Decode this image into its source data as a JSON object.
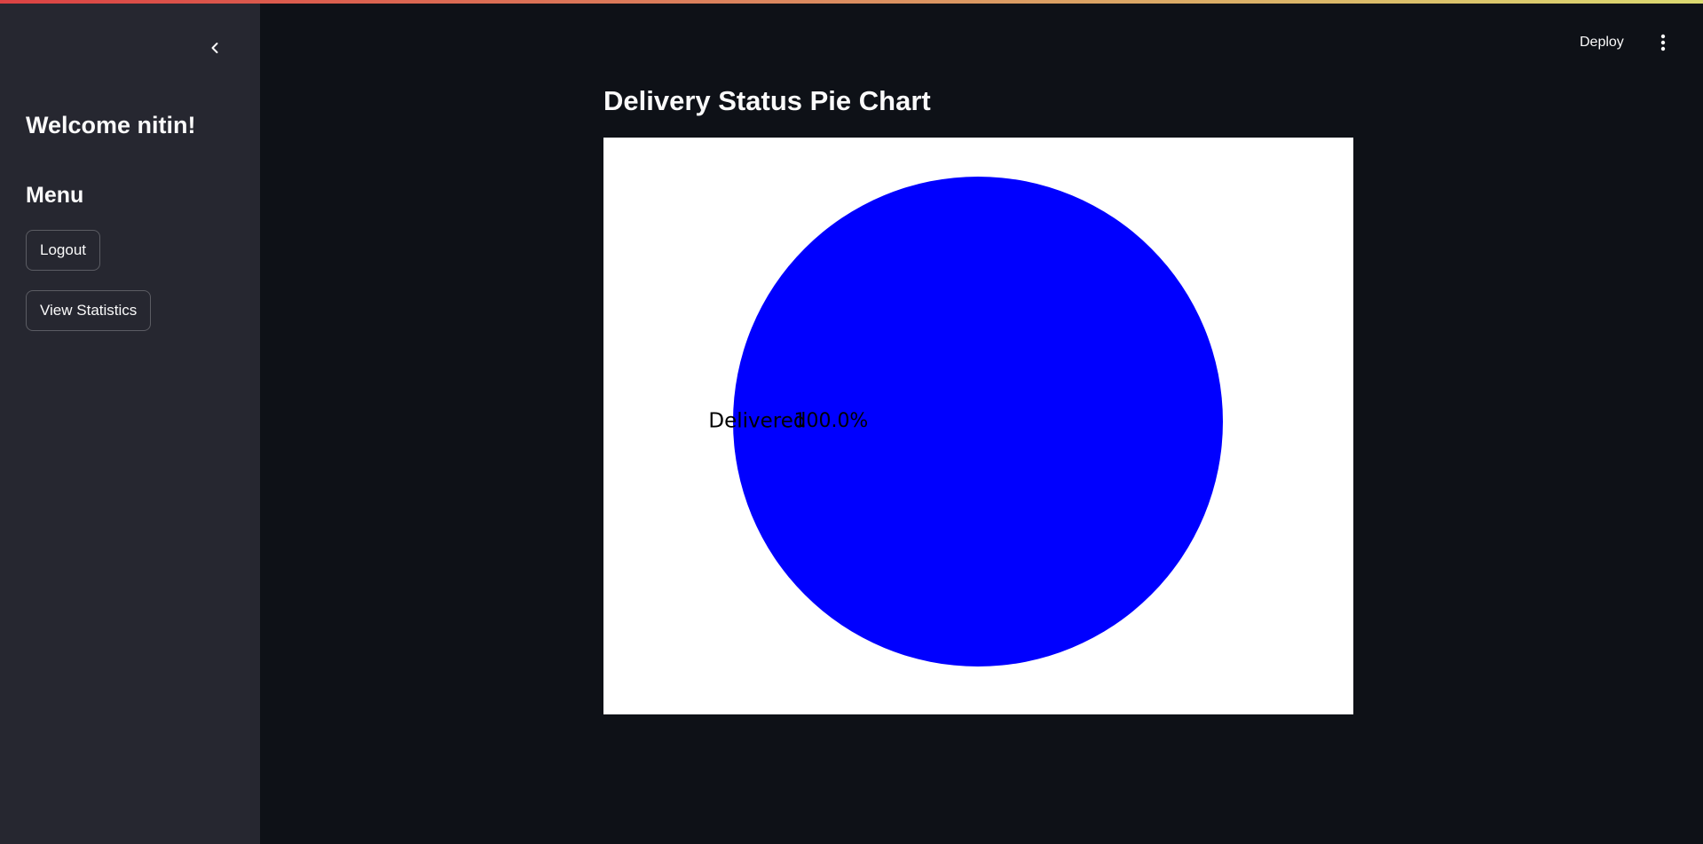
{
  "header": {
    "deploy_label": "Deploy",
    "menu_icon": "more-vertical-icon"
  },
  "sidebar": {
    "collapse_icon": "chevron-left-icon",
    "welcome": "Welcome nitin!",
    "menu_title": "Menu",
    "buttons": [
      "Logout",
      "View Statistics"
    ]
  },
  "main": {
    "title": "Delivery Status Pie Chart"
  },
  "colors": {
    "background": "#0e1117",
    "sidebar": "#262730",
    "text": "#fafafa",
    "chart_background": "#ffffff"
  },
  "chart_data": {
    "type": "pie",
    "categories": [
      "Delivered"
    ],
    "values": [
      100
    ],
    "colors": [
      "#0000ff"
    ],
    "autopct_labels": [
      "100.0%"
    ],
    "title": ""
  }
}
